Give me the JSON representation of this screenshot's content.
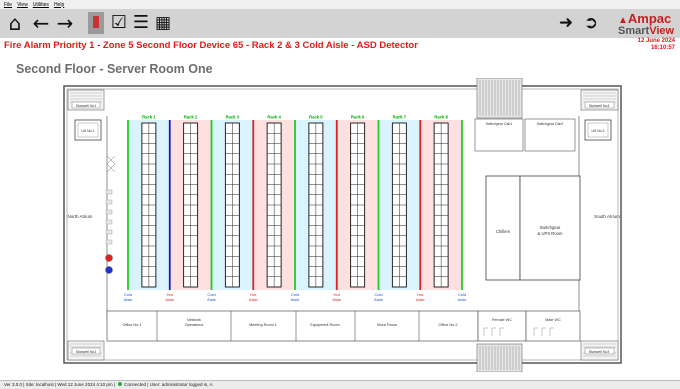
{
  "menu": [
    "File",
    "View",
    "Utilities",
    "Help"
  ],
  "toolbar": {
    "home_icon": "home-icon",
    "back_icon": "arrow-left-icon",
    "forward_icon": "arrow-right-icon",
    "alarm_icon": "alarm-icon",
    "checklist_icon": "calendar-check-icon",
    "list_icon": "list-icon",
    "calendar_icon": "calendar-icon",
    "login_icon": "sign-in-icon",
    "logout_icon": "sign-out-icon"
  },
  "brand": {
    "name": "Ampac",
    "product_a": "Smart",
    "product_b": "View"
  },
  "alarm": {
    "text": "Fire Alarm   Priority 1 - Zone 5 Second Floor Device 65 - Rack 2 & 3 Cold Aisle - ASD Detector",
    "date": "12 June 2024",
    "time": "16:10:57"
  },
  "page_title": "Second Floor - Server Room One",
  "plan": {
    "stairwells": [
      "Stairwell No1",
      "Stairwell No2",
      "Stairwell No3",
      "Stairwell No4"
    ],
    "lifts": [
      "Lift No.1",
      "Lift No.2"
    ],
    "switchgear_cabs": [
      "Switchgear Cab1",
      "Switchgear Cab2"
    ],
    "north_atrium": "North Atrium",
    "south_atrium": "South Atrium",
    "racks": [
      "Rack 1",
      "Rack 2",
      "Rack 3",
      "Rack 4",
      "Rack 5",
      "Rack 6",
      "Rack 7",
      "Rack 8"
    ],
    "aisle_words": [
      "Cold",
      "Aisle",
      "Hot",
      "Aisle"
    ],
    "aisles": [
      {
        "type": "cold"
      },
      {
        "type": "hot"
      },
      {
        "type": "cold"
      },
      {
        "type": "hot"
      },
      {
        "type": "cold"
      },
      {
        "type": "hot"
      },
      {
        "type": "cold"
      },
      {
        "type": "hot"
      },
      {
        "type": "cold"
      }
    ],
    "chillers": "Chillers",
    "switchgear_ups": [
      "Switchgear",
      "& UPS Room"
    ],
    "rooms": [
      "Office No.1",
      "Network",
      "Operations",
      "Meeting Room 1",
      "Equipment Room",
      "Store Room",
      "Office No.2",
      "Female WC",
      "Male WC"
    ],
    "colors": {
      "cold_aisle": "#22cc22",
      "hot_aisle": "#dd2222",
      "alarm_aisle": "#1a1acc",
      "cold_zone": "#d9f3ff",
      "hot_zone": "#ffe0e0",
      "rack_label": "#00aa00"
    }
  },
  "status": {
    "version": "Ver 3.0.0",
    "site": "Site: localhost",
    "datetime": "Wed 12 June 2024 4:10 pm",
    "connection": "Connected",
    "user": "User: administrator",
    "logged": "logged in, A"
  }
}
